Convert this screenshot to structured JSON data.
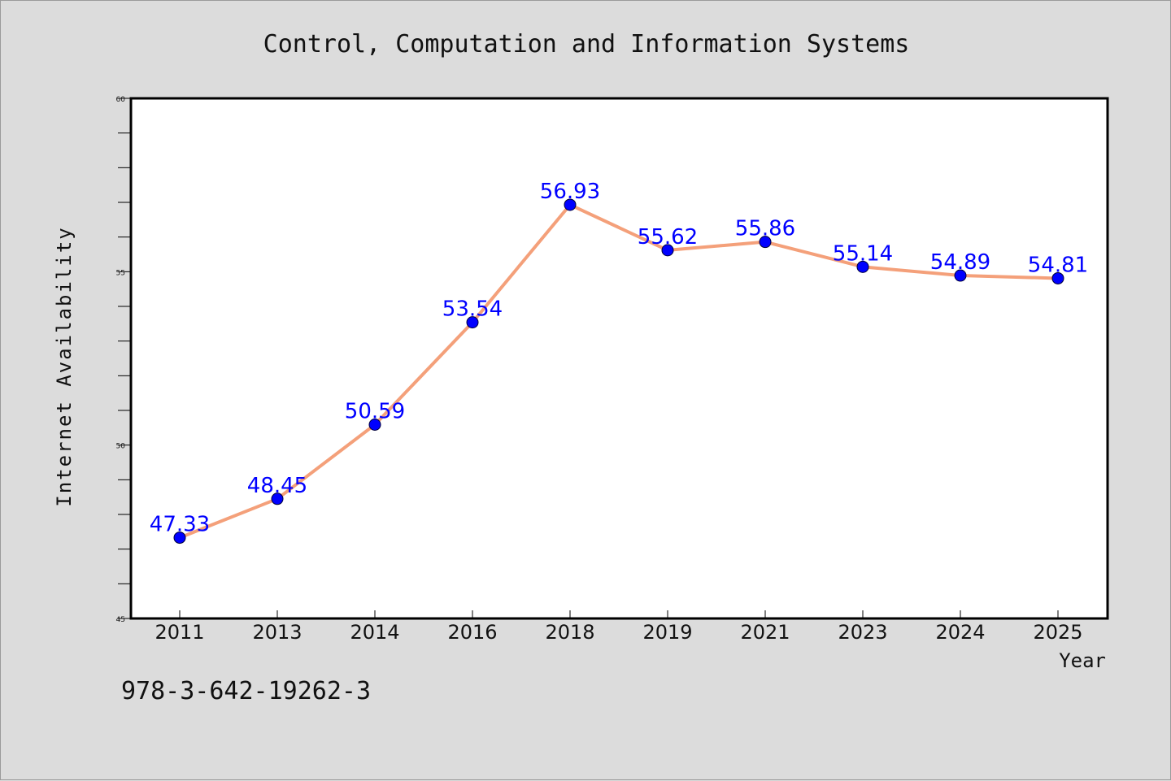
{
  "page": {
    "footer_code": "978-3-642-19262-3"
  },
  "chart_data": {
    "type": "line",
    "title": "Control, Computation and Information Systems",
    "xlabel": "Year",
    "ylabel": "Internet Availability",
    "categories": [
      "2011",
      "2013",
      "2014",
      "2016",
      "2018",
      "2019",
      "2021",
      "2023",
      "2024",
      "2025"
    ],
    "series": [
      {
        "values": [
          47.33,
          48.45,
          50.59,
          53.54,
          56.93,
          55.62,
          55.86,
          55.14,
          54.89,
          54.81
        ],
        "data_labels": [
          "47.33",
          "48.45",
          "50.59",
          "53.54",
          "56.93",
          "55.62",
          "55.86",
          "55.14",
          "54.89",
          "54.81"
        ],
        "line_color": "#f4a07a",
        "marker_color": "#0000ff"
      }
    ],
    "ylim": [
      45,
      60
    ],
    "y_major_ticks": [
      45,
      50,
      55,
      60
    ],
    "y_tick_labels": [
      "45",
      "50",
      "55",
      "60"
    ],
    "y_minor_step": 1,
    "grid": false,
    "legend": "none",
    "colors": {
      "background": "#dcdcdc",
      "plot_background": "#ffffff",
      "axis": "#000000",
      "label_color": "#0000ff"
    }
  }
}
